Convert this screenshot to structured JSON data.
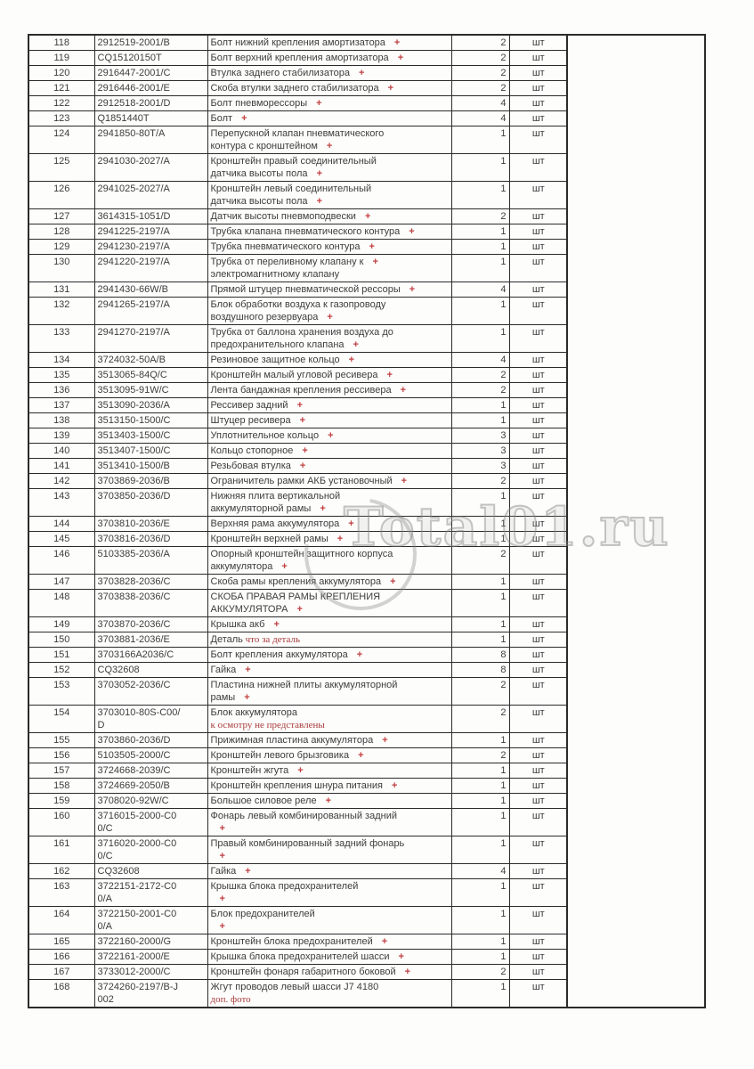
{
  "document": {
    "watermark": "Total01.ru"
  },
  "colors": {
    "border": "#2b2b2b",
    "text": "#3d3d3d",
    "plus_red": "#c14040",
    "note_red": "#a83b3b"
  },
  "table": {
    "rows": [
      {
        "no": "118",
        "part": "2912519-2001/B",
        "qty": "2",
        "unit": "шт",
        "lines": [
          {
            "t": "Болт нижний крепления амортизатора",
            "plus": true
          }
        ]
      },
      {
        "no": "119",
        "part": "CQ15120150T",
        "qty": "2",
        "unit": "шт",
        "lines": [
          {
            "t": "Болт верхний крепления амортизатора",
            "plus": true
          }
        ]
      },
      {
        "no": "120",
        "part": "2916447-2001/C",
        "qty": "2",
        "unit": "шт",
        "lines": [
          {
            "t": "Втулка заднего стабилизатора",
            "plus": true
          }
        ]
      },
      {
        "no": "121",
        "part": "2916446-2001/E",
        "qty": "2",
        "unit": "шт",
        "lines": [
          {
            "t": "Скоба втулки заднего стабилизатора",
            "plus": true
          }
        ]
      },
      {
        "no": "122",
        "part": "2912518-2001/D",
        "qty": "4",
        "unit": "шт",
        "lines": [
          {
            "t": "Болт пневморессоры",
            "plus": true
          }
        ]
      },
      {
        "no": "123",
        "part": "Q1851440T",
        "qty": "4",
        "unit": "шт",
        "lines": [
          {
            "t": "Болт",
            "plus": true
          }
        ]
      },
      {
        "no": "124",
        "part": "2941850-80T/A",
        "qty": "1",
        "unit": "шт",
        "lines": [
          {
            "t": "Перепускной клапан пневматического"
          },
          {
            "t": "контура с кронштейном",
            "plus": true
          }
        ]
      },
      {
        "no": "125",
        "part": "2941030-2027/A",
        "qty": "1",
        "unit": "шт",
        "lines": [
          {
            "t": "Кронштейн правый соединительный"
          },
          {
            "t": "датчика высоты пола",
            "plus": true
          }
        ]
      },
      {
        "no": "126",
        "part": "2941025-2027/A",
        "qty": "1",
        "unit": "шт",
        "lines": [
          {
            "t": "Кронштейн левый соединительный"
          },
          {
            "t": "датчика высоты пола",
            "plus": true
          }
        ]
      },
      {
        "no": "127",
        "part": "3614315-1051/D",
        "qty": "2",
        "unit": "шт",
        "lines": [
          {
            "t": "Датчик высоты пневмоподвески",
            "plus": true
          }
        ]
      },
      {
        "no": "128",
        "part": "2941225-2197/A",
        "qty": "1",
        "unit": "шт",
        "lines": [
          {
            "t": "Трубка клапана пневматического контура",
            "plus": true
          }
        ]
      },
      {
        "no": "129",
        "part": "2941230-2197/A",
        "qty": "1",
        "unit": "шт",
        "lines": [
          {
            "t": "Трубка пневматического контура",
            "plus": true
          }
        ]
      },
      {
        "no": "130",
        "part": "2941220-2197/A",
        "qty": "1",
        "unit": "шт",
        "lines": [
          {
            "t": "Трубка от переливному клапану к",
            "plus": true
          },
          {
            "t": "электромагнитному клапану"
          }
        ]
      },
      {
        "no": "131",
        "part": "2941430-66W/B",
        "qty": "4",
        "unit": "шт",
        "lines": [
          {
            "t": "Прямой штуцер пневматической рессоры",
            "plus": true
          }
        ]
      },
      {
        "no": "132",
        "part": "2941265-2197/A",
        "qty": "1",
        "unit": "шт",
        "lines": [
          {
            "t": "Блок обработки воздуха к газопроводу"
          },
          {
            "t": "воздушного резервуара",
            "plus": true
          }
        ]
      },
      {
        "no": "133",
        "part": "2941270-2197/A",
        "qty": "1",
        "unit": "шт",
        "lines": [
          {
            "t": "Трубка от баллона хранения воздуха до"
          },
          {
            "t": "предохранительного клапана",
            "plus": true
          }
        ]
      },
      {
        "no": "134",
        "part": "3724032-50A/B",
        "qty": "4",
        "unit": "шт",
        "lines": [
          {
            "t": "Резиновое защитное кольцо",
            "plus": true
          }
        ]
      },
      {
        "no": "135",
        "part": "3513065-84Q/C",
        "qty": "2",
        "unit": "шт",
        "lines": [
          {
            "t": "Кронштейн малый угловой ресивера",
            "plus": true
          }
        ]
      },
      {
        "no": "136",
        "part": "3513095-91W/C",
        "qty": "2",
        "unit": "шт",
        "lines": [
          {
            "t": "Лента бандажная крепления рессивера",
            "plus": true
          }
        ]
      },
      {
        "no": "137",
        "part": "3513090-2036/A",
        "qty": "1",
        "unit": "шт",
        "lines": [
          {
            "t": "Рессивер задний",
            "plus": true
          }
        ]
      },
      {
        "no": "138",
        "part": "3513150-1500/C",
        "qty": "1",
        "unit": "шт",
        "lines": [
          {
            "t": "Штуцер ресивера",
            "plus": true
          }
        ]
      },
      {
        "no": "139",
        "part": "3513403-1500/C",
        "qty": "3",
        "unit": "шт",
        "lines": [
          {
            "t": "Уплотнительное кольцо",
            "plus": true
          }
        ]
      },
      {
        "no": "140",
        "part": "3513407-1500/C",
        "qty": "3",
        "unit": "шт",
        "lines": [
          {
            "t": "Кольцо стопорное",
            "plus": true
          }
        ]
      },
      {
        "no": "141",
        "part": "3513410-1500/B",
        "qty": "3",
        "unit": "шт",
        "lines": [
          {
            "t": "Резьбовая втулка",
            "plus": true
          }
        ]
      },
      {
        "no": "142",
        "part": "3703869-2036/B",
        "qty": "2",
        "unit": "шт",
        "lines": [
          {
            "t": "Ограничитель рамки АКБ установочный",
            "plus": true
          }
        ]
      },
      {
        "no": "143",
        "part": "3703850-2036/D",
        "qty": "1",
        "unit": "шт",
        "lines": [
          {
            "t": "Нижняя плита вертикальной"
          },
          {
            "t": "аккумуляторной рамы",
            "plus": true
          }
        ]
      },
      {
        "no": "144",
        "part": "3703810-2036/E",
        "qty": "1",
        "unit": "шт",
        "lines": [
          {
            "t": "Верхняя рама аккумулятора",
            "plus": true
          }
        ]
      },
      {
        "no": "145",
        "part": "3703816-2036/D",
        "qty": "1",
        "unit": "шт",
        "lines": [
          {
            "t": "Кронштейн верхней рамы",
            "plus": true
          }
        ]
      },
      {
        "no": "146",
        "part": "5103385-2036/A",
        "qty": "2",
        "unit": "шт",
        "lines": [
          {
            "t": "Опорный кронштейн защитного корпуса"
          },
          {
            "t": "аккумулятора",
            "plus": true
          }
        ]
      },
      {
        "no": "147",
        "part": "3703828-2036/C",
        "qty": "1",
        "unit": "шт",
        "lines": [
          {
            "t": "Скоба рамы крепления аккумулятора",
            "plus": true
          }
        ]
      },
      {
        "no": "148",
        "part": "3703838-2036/C",
        "qty": "1",
        "unit": "шт",
        "lines": [
          {
            "t": "СКОБА ПРАВАЯ РАМЫ КРЕПЛЕНИЯ"
          },
          {
            "t": "АККУМУЛЯТОРА",
            "plus": true
          }
        ]
      },
      {
        "no": "149",
        "part": "3703870-2036/C",
        "qty": "1",
        "unit": "шт",
        "lines": [
          {
            "t": "Крышка акб",
            "plus": true
          }
        ]
      },
      {
        "no": "150",
        "part": "3703881-2036/E",
        "qty": "1",
        "unit": "шт",
        "lines": [
          {
            "t": "Деталь",
            "red": "что за деталь"
          }
        ]
      },
      {
        "no": "151",
        "part": "3703166A2036/C",
        "qty": "8",
        "unit": "шт",
        "lines": [
          {
            "t": "Болт крепления аккумулятора",
            "plus": true
          }
        ]
      },
      {
        "no": "152",
        "part": "CQ32608",
        "qty": "8",
        "unit": "шт",
        "lines": [
          {
            "t": "Гайка",
            "plus": true
          }
        ]
      },
      {
        "no": "153",
        "part": "3703052-2036/C",
        "qty": "2",
        "unit": "шт",
        "lines": [
          {
            "t": "Пластина нижней плиты аккумуляторной"
          },
          {
            "t": "рамы",
            "plus": true
          }
        ]
      },
      {
        "no": "154",
        "part": "3703010-80S-C00/\nD",
        "qty": "2",
        "unit": "шт",
        "lines": [
          {
            "t": "Блок аккумулятора"
          },
          {
            "red": "к осмотру не представлены"
          }
        ]
      },
      {
        "no": "155",
        "part": "3703860-2036/D",
        "qty": "1",
        "unit": "шт",
        "lines": [
          {
            "t": "Прижимная пластина аккумулятора",
            "plus": true
          }
        ]
      },
      {
        "no": "156",
        "part": "5103505-2000/C",
        "qty": "2",
        "unit": "шт",
        "lines": [
          {
            "t": "Кронштейн левого брызговика",
            "plus": true
          }
        ]
      },
      {
        "no": "157",
        "part": "3724668-2039/C",
        "qty": "1",
        "unit": "шт",
        "lines": [
          {
            "t": "Кронштейн жгута",
            "plus": true
          }
        ]
      },
      {
        "no": "158",
        "part": "3724669-2050/B",
        "qty": "1",
        "unit": "шт",
        "lines": [
          {
            "t": "Кронштейн крепления шнура питания",
            "plus": true
          }
        ]
      },
      {
        "no": "159",
        "part": "3708020-92W/C",
        "qty": "1",
        "unit": "шт",
        "lines": [
          {
            "t": "Большое силовое реле",
            "plus": true
          }
        ]
      },
      {
        "no": "160",
        "part": "3716015-2000-C0\n0/C",
        "qty": "1",
        "unit": "шт",
        "lines": [
          {
            "t": "Фонарь левый комбинированный задний"
          },
          {
            "plus": true
          }
        ]
      },
      {
        "no": "161",
        "part": "3716020-2000-C0\n0/C",
        "qty": "1",
        "unit": "шт",
        "lines": [
          {
            "t": "Правый комбинированный задний фонарь"
          },
          {
            "plus": true
          }
        ]
      },
      {
        "no": "162",
        "part": "CQ32608",
        "qty": "4",
        "unit": "шт",
        "lines": [
          {
            "t": "Гайка",
            "plus": true
          }
        ]
      },
      {
        "no": "163",
        "part": "3722151-2172-C0\n0/A",
        "qty": "1",
        "unit": "шт",
        "lines": [
          {
            "t": "Крышка блока предохранителей"
          },
          {
            "plus": true
          }
        ]
      },
      {
        "no": "164",
        "part": "3722150-2001-C0\n0/A",
        "qty": "1",
        "unit": "шт",
        "lines": [
          {
            "t": "Блок предохранителей"
          },
          {
            "plus": true
          }
        ]
      },
      {
        "no": "165",
        "part": "3722160-2000/G",
        "qty": "1",
        "unit": "шт",
        "lines": [
          {
            "t": "Кронштейн блока предохранителей",
            "plus": true
          }
        ]
      },
      {
        "no": "166",
        "part": "3722161-2000/E",
        "qty": "1",
        "unit": "шт",
        "lines": [
          {
            "t": "Крышка блока предохранителей шасси",
            "plus": true
          }
        ]
      },
      {
        "no": "167",
        "part": "3733012-2000/C",
        "qty": "2",
        "unit": "шт",
        "lines": [
          {
            "t": "Кронштейн фонаря габаритного боковой",
            "plus": true
          }
        ]
      },
      {
        "no": "168",
        "part": "3724260-2197/B-J\n002",
        "qty": "1",
        "unit": "шт",
        "lines": [
          {
            "t": "Жгут проводов левый шасси J7 4180"
          },
          {
            "red": "доп. фото"
          }
        ]
      }
    ]
  }
}
